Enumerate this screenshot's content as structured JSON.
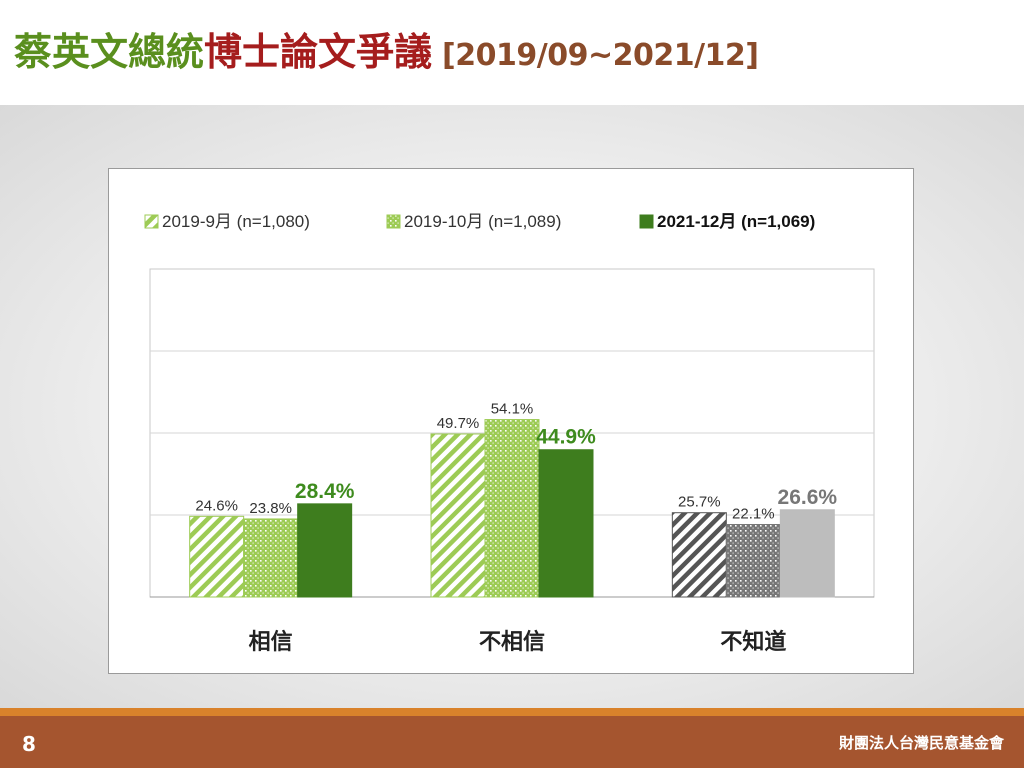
{
  "slide": {
    "title_part1": "蔡英文總統",
    "title_part2": "博士論文爭議",
    "title_range": "[2019/09~2021/12]",
    "page_number": "8",
    "organization": "財團法人台灣民意基金會"
  },
  "chart_data": {
    "type": "bar",
    "title": "",
    "xlabel": "",
    "ylabel": "",
    "ylim": [
      0,
      100
    ],
    "grid": true,
    "legend_position": "top",
    "categories": [
      "相信",
      "不相信",
      "不知道"
    ],
    "series": [
      {
        "name": "2019-9月 (n=1,080)",
        "values": [
          24.6,
          49.7,
          25.7
        ],
        "labels": [
          "24.6%",
          "49.7%",
          "25.7%"
        ],
        "pattern": "diagonal-stripes",
        "highlight": false
      },
      {
        "name": "2019-10月 (n=1,089)",
        "values": [
          23.8,
          54.1,
          22.1
        ],
        "labels": [
          "23.8%",
          "54.1%",
          "22.1%"
        ],
        "pattern": "dots",
        "highlight": false
      },
      {
        "name": "2021-12月 (n=1,069)",
        "values": [
          28.4,
          44.9,
          26.6
        ],
        "labels": [
          "28.4%",
          "44.9%",
          "26.6%"
        ],
        "pattern": "solid",
        "highlight": true
      }
    ],
    "colors": {
      "green_solid": "#3e7d1e",
      "green_light": "#9dcb55",
      "gray_dark": "#555555",
      "gray_light": "#bdbdbd",
      "label_green": "#3e8b1e",
      "label_gray": "#777777"
    }
  }
}
